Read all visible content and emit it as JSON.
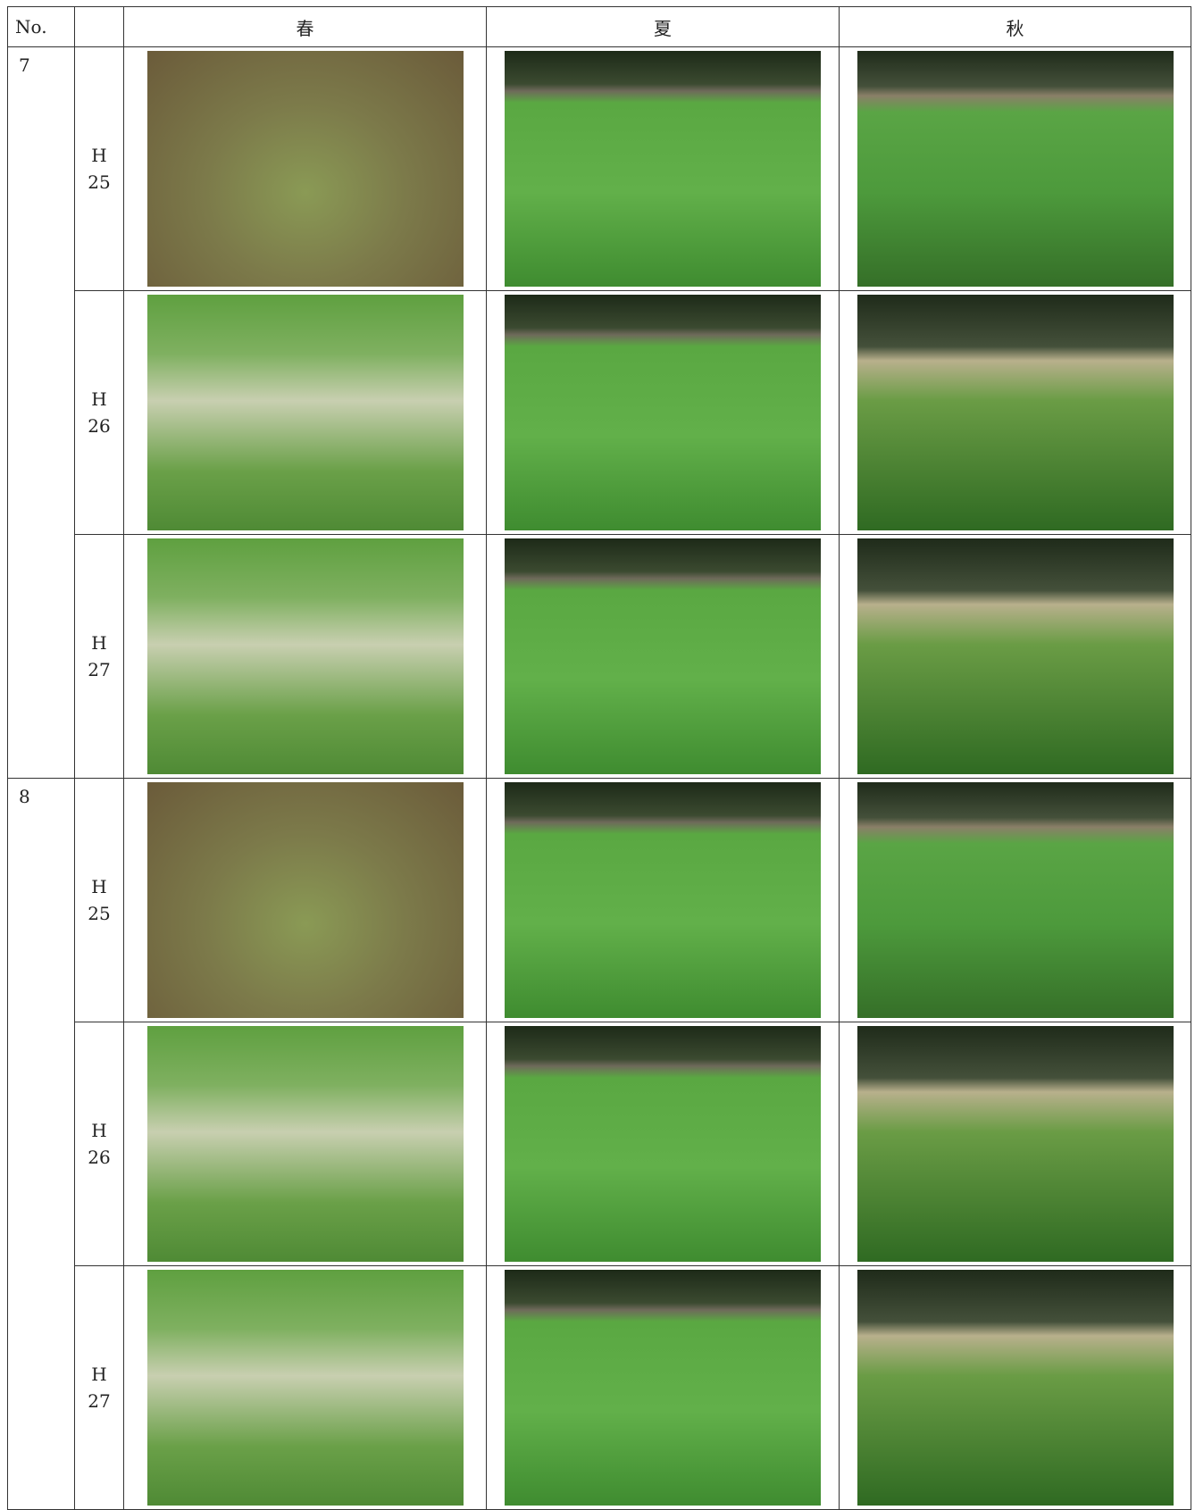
{
  "table": {
    "header": [
      "No.",
      "春",
      "夏",
      "秋"
    ],
    "groups": [
      {
        "no": "7",
        "rows": [
          {
            "year": "H\n25"
          },
          {
            "year": "H\n26"
          },
          {
            "year": "H\n27"
          }
        ]
      },
      {
        "no": "8",
        "rows": [
          {
            "year": "H\n25"
          },
          {
            "year": "H\n26"
          },
          {
            "year": "H\n27"
          }
        ]
      }
    ]
  }
}
